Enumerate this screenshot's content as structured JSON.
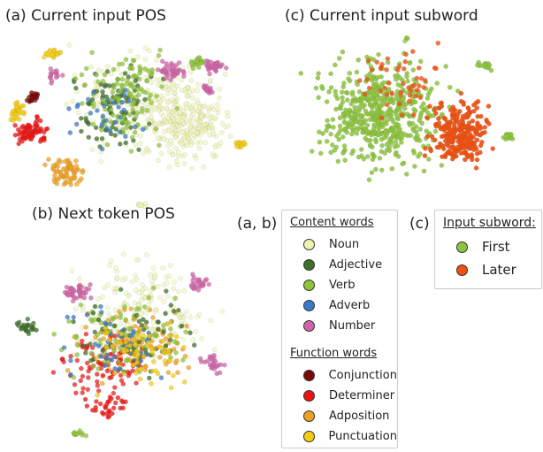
{
  "chart_data": [
    {
      "type": "scatter",
      "title": "(a)  Current input POS",
      "legend_ref": "(a, b)"
    },
    {
      "type": "scatter",
      "title": "(b)  Next token POS",
      "legend_ref": "(a, b)"
    },
    {
      "type": "scatter",
      "title": "(c)  Current input subword",
      "legend_ref": "(c)"
    }
  ],
  "legend_ab": {
    "tag": "(a, b)",
    "content_header": "Content words",
    "content": [
      {
        "label": "Noun",
        "color": "#eef5b0"
      },
      {
        "label": "Adjective",
        "color": "#3f6e2a"
      },
      {
        "label": "Verb",
        "color": "#8fc43a"
      },
      {
        "label": "Adverb",
        "color": "#3a78c8"
      },
      {
        "label": "Number",
        "color": "#d064a8"
      }
    ],
    "function_header": "Function words",
    "function": [
      {
        "label": "Conjunction",
        "color": "#7a0a0a"
      },
      {
        "label": "Determiner",
        "color": "#ee1111"
      },
      {
        "label": "Adposition",
        "color": "#f0a020"
      },
      {
        "label": "Punctuation",
        "color": "#f5cc10"
      }
    ]
  },
  "legend_c": {
    "tag": "(c)",
    "header": "Input subword:",
    "items": [
      {
        "label": "First",
        "color": "#8cc43c"
      },
      {
        "label": "Later",
        "color": "#f05010"
      }
    ]
  }
}
